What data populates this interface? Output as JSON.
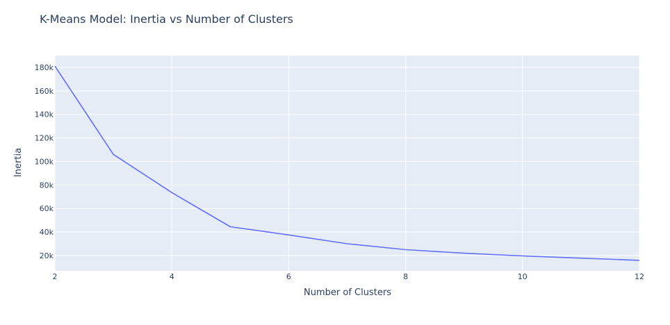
{
  "chart_data": {
    "type": "line",
    "title": "K-Means Model: Inertia vs Number of Clusters",
    "xlabel": "Number of Clusters",
    "ylabel": "Inertia",
    "xlim": [
      2,
      12
    ],
    "ylim": [
      7000,
      190000
    ],
    "x_ticks": [
      2,
      4,
      6,
      8,
      10,
      12
    ],
    "y_ticks": [
      20000,
      40000,
      60000,
      80000,
      100000,
      120000,
      140000,
      160000,
      180000
    ],
    "y_tick_labels": [
      "20k",
      "40k",
      "60k",
      "80k",
      "100k",
      "120k",
      "140k",
      "160k",
      "180k"
    ],
    "grid": true,
    "legend": false,
    "series": [
      {
        "color": "#636efa",
        "x": [
          2,
          3,
          4,
          5,
          6,
          7,
          8,
          9,
          10,
          11,
          12
        ],
        "y": [
          181000,
          106000,
          73500,
          44500,
          37500,
          30000,
          25000,
          22000,
          19700,
          17800,
          15900
        ]
      }
    ]
  },
  "colors": {
    "plot_bg": "#e5ecf6",
    "grid": "#ffffff",
    "text": "#2a3f5f",
    "line": "#636efa"
  }
}
